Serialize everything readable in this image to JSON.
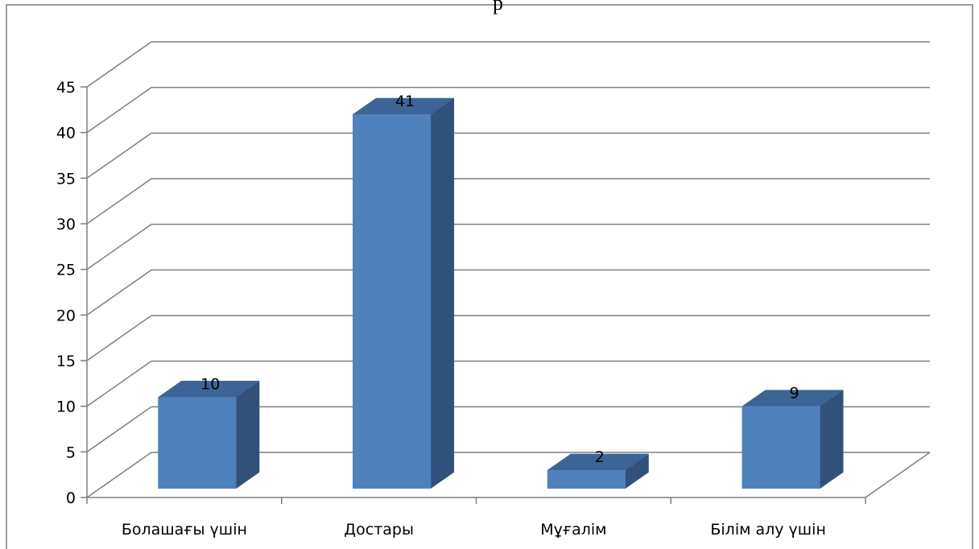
{
  "chart_data": {
    "type": "bar",
    "title": "р",
    "categories": [
      "Болашағы үшін",
      "Достары",
      "Мұғалім",
      "Білім алу үшін"
    ],
    "values": [
      10,
      41,
      2,
      9
    ],
    "ylim": [
      0,
      45
    ],
    "ytick_step": 5,
    "ytick_labels": [
      "0",
      "5",
      "10",
      "15",
      "20",
      "25",
      "30",
      "35",
      "40",
      "45"
    ],
    "grid": true,
    "legend": "none",
    "style": "3d-column",
    "colors": {
      "bar_front": "#4f81bd",
      "bar_side": "#31507a",
      "bar_top": "#3d6496",
      "gridline": "#7f7f7f",
      "frame": "#7f7f7f"
    }
  }
}
